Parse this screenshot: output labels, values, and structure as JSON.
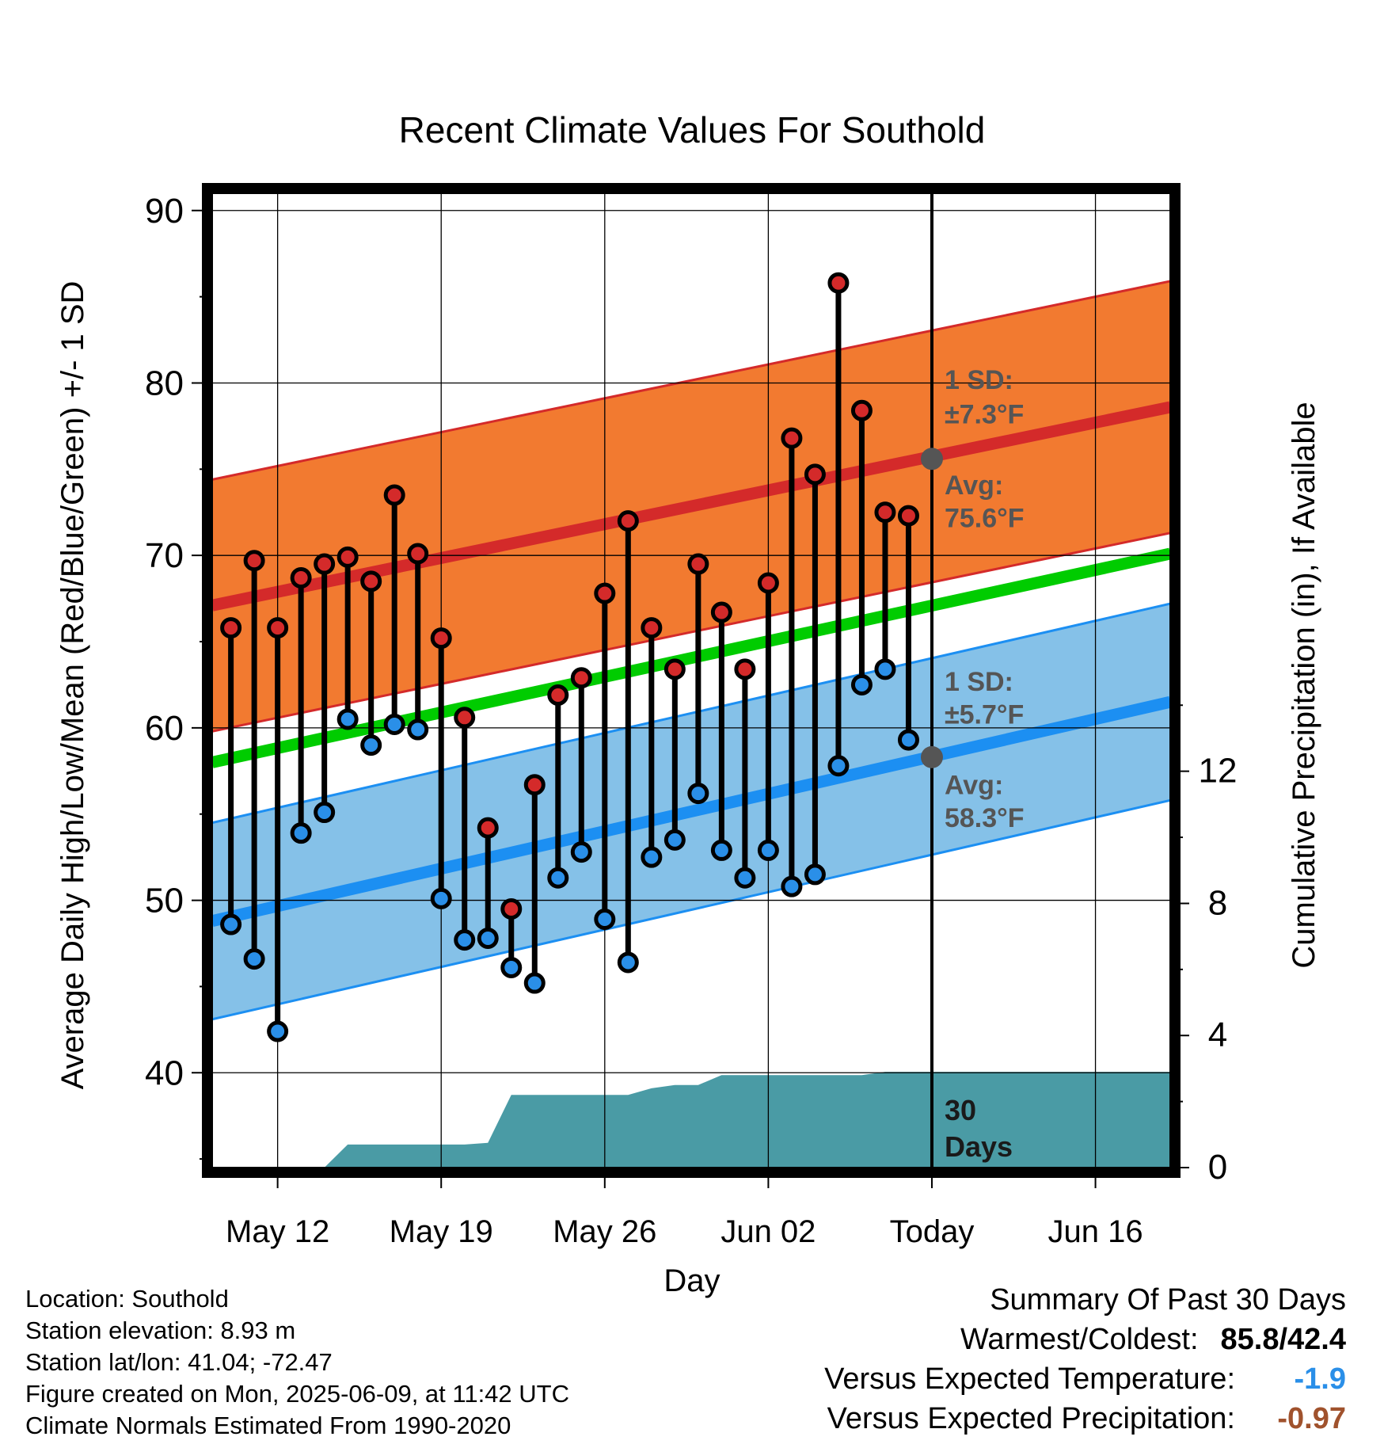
{
  "chart_data": {
    "type": "line",
    "title": "Recent Climate Values For Southold",
    "xlabel": "Day",
    "ylabel": "Average Daily High/Low/Mean (Red/Blue/Green) +/- 1 SD",
    "y2label": "Cumulative Precipitation (in), If Available",
    "ylim": [
      34.5,
      91
    ],
    "yticks": [
      40,
      50,
      60,
      70,
      80,
      90
    ],
    "y2lim": [
      0,
      29.5
    ],
    "y2ticks": [
      0,
      4,
      8,
      12
    ],
    "xlim": [
      -2.8,
      38.2
    ],
    "xticks": [
      {
        "day": 0,
        "label": "May 12"
      },
      {
        "day": 7,
        "label": "May 19"
      },
      {
        "day": 14,
        "label": "May 26"
      },
      {
        "day": 21,
        "label": "Jun 02"
      },
      {
        "day": 28,
        "label": "Today"
      },
      {
        "day": 35,
        "label": "Jun 16"
      }
    ],
    "today_day": 28,
    "days": [
      -2,
      -1,
      0,
      1,
      2,
      3,
      4,
      5,
      6,
      7,
      8,
      9,
      10,
      11,
      12,
      13,
      14,
      15,
      16,
      17,
      18,
      19,
      20,
      21,
      22,
      23,
      24,
      25,
      26,
      27
    ],
    "highs": [
      65.8,
      69.7,
      65.8,
      68.7,
      69.5,
      69.9,
      68.5,
      73.5,
      70.1,
      65.2,
      60.6,
      54.2,
      49.5,
      56.7,
      61.9,
      62.9,
      67.8,
      72.0,
      65.8,
      63.4,
      69.5,
      66.7,
      63.4,
      68.4,
      76.8,
      74.7,
      85.8,
      78.4,
      72.5,
      72.3
    ],
    "lows": [
      48.6,
      46.6,
      42.4,
      53.9,
      55.1,
      60.5,
      59.0,
      60.2,
      59.9,
      50.1,
      47.7,
      47.8,
      46.1,
      45.2,
      51.3,
      52.8,
      48.9,
      46.4,
      52.5,
      53.5,
      56.2,
      52.9,
      51.3,
      52.9,
      50.8,
      51.5,
      57.8,
      62.5,
      63.4,
      59.3
    ],
    "normal_high": {
      "start": 67.1,
      "end": 78.6
    },
    "normal_low": {
      "start": 48.8,
      "end": 61.5
    },
    "normal_mean": {
      "start": 58.0,
      "end": 70.1
    },
    "high_sd": 7.3,
    "low_sd": 5.7,
    "precip_days": [
      -2,
      -1,
      0,
      1,
      2,
      3,
      4,
      5,
      6,
      7,
      8,
      9,
      10,
      11,
      12,
      13,
      14,
      15,
      16,
      17,
      18,
      19,
      20,
      21,
      22,
      23,
      24,
      25,
      26,
      27,
      28,
      38.2
    ],
    "precip_cumulative": [
      0,
      0,
      0,
      0,
      0,
      0.7,
      0.7,
      0.7,
      0.7,
      0.7,
      0.7,
      0.75,
      2.2,
      2.2,
      2.2,
      2.2,
      2.2,
      2.2,
      2.4,
      2.5,
      2.5,
      2.8,
      2.8,
      2.8,
      2.8,
      2.8,
      2.8,
      2.8,
      2.9,
      2.9,
      2.9,
      2.9
    ],
    "annotations": {
      "high_sd_line1": "1 SD:",
      "high_sd_line2": "±7.3°F",
      "high_avg_line1": "Avg:",
      "high_avg_line2": "75.6°F",
      "low_sd_line1": "1 SD:",
      "low_sd_line2": "±5.7°F",
      "low_avg_line1": "Avg:",
      "low_avg_line2": "58.3°F",
      "days_line1": "30",
      "days_line2": "Days"
    },
    "today_marker_high": 75.6,
    "today_marker_low": 58.3,
    "colors": {
      "high_band": "#f27a30",
      "high_line": "#d42a2a",
      "low_band": "#85c1e8",
      "low_line": "#1c8ff2",
      "mean_line": "#00cc00",
      "precip": "#4a9ba5",
      "high_point": "#d42a2a",
      "low_point": "#2a8fe8",
      "marker": "#555555"
    }
  },
  "footer": {
    "location": "Location: Southold",
    "elevation": "Station elevation: 8.93 m",
    "latlon": "Station lat/lon: 41.04; -72.47",
    "created": "Figure created on Mon, 2025-06-09, at 11:42 UTC",
    "normals": "Climate Normals Estimated From 1990-2020"
  },
  "summary": {
    "heading": "Summary Of Past 30 Days",
    "warmest_label": "Warmest/Coldest:",
    "warmest_value": "85.8/42.4",
    "temp_label": "Versus Expected Temperature:",
    "temp_value": "-1.9",
    "temp_color": "#2a8fe8",
    "precip_label": "Versus Expected Precipitation:",
    "precip_value": "-0.97",
    "precip_color": "#a0522d"
  }
}
